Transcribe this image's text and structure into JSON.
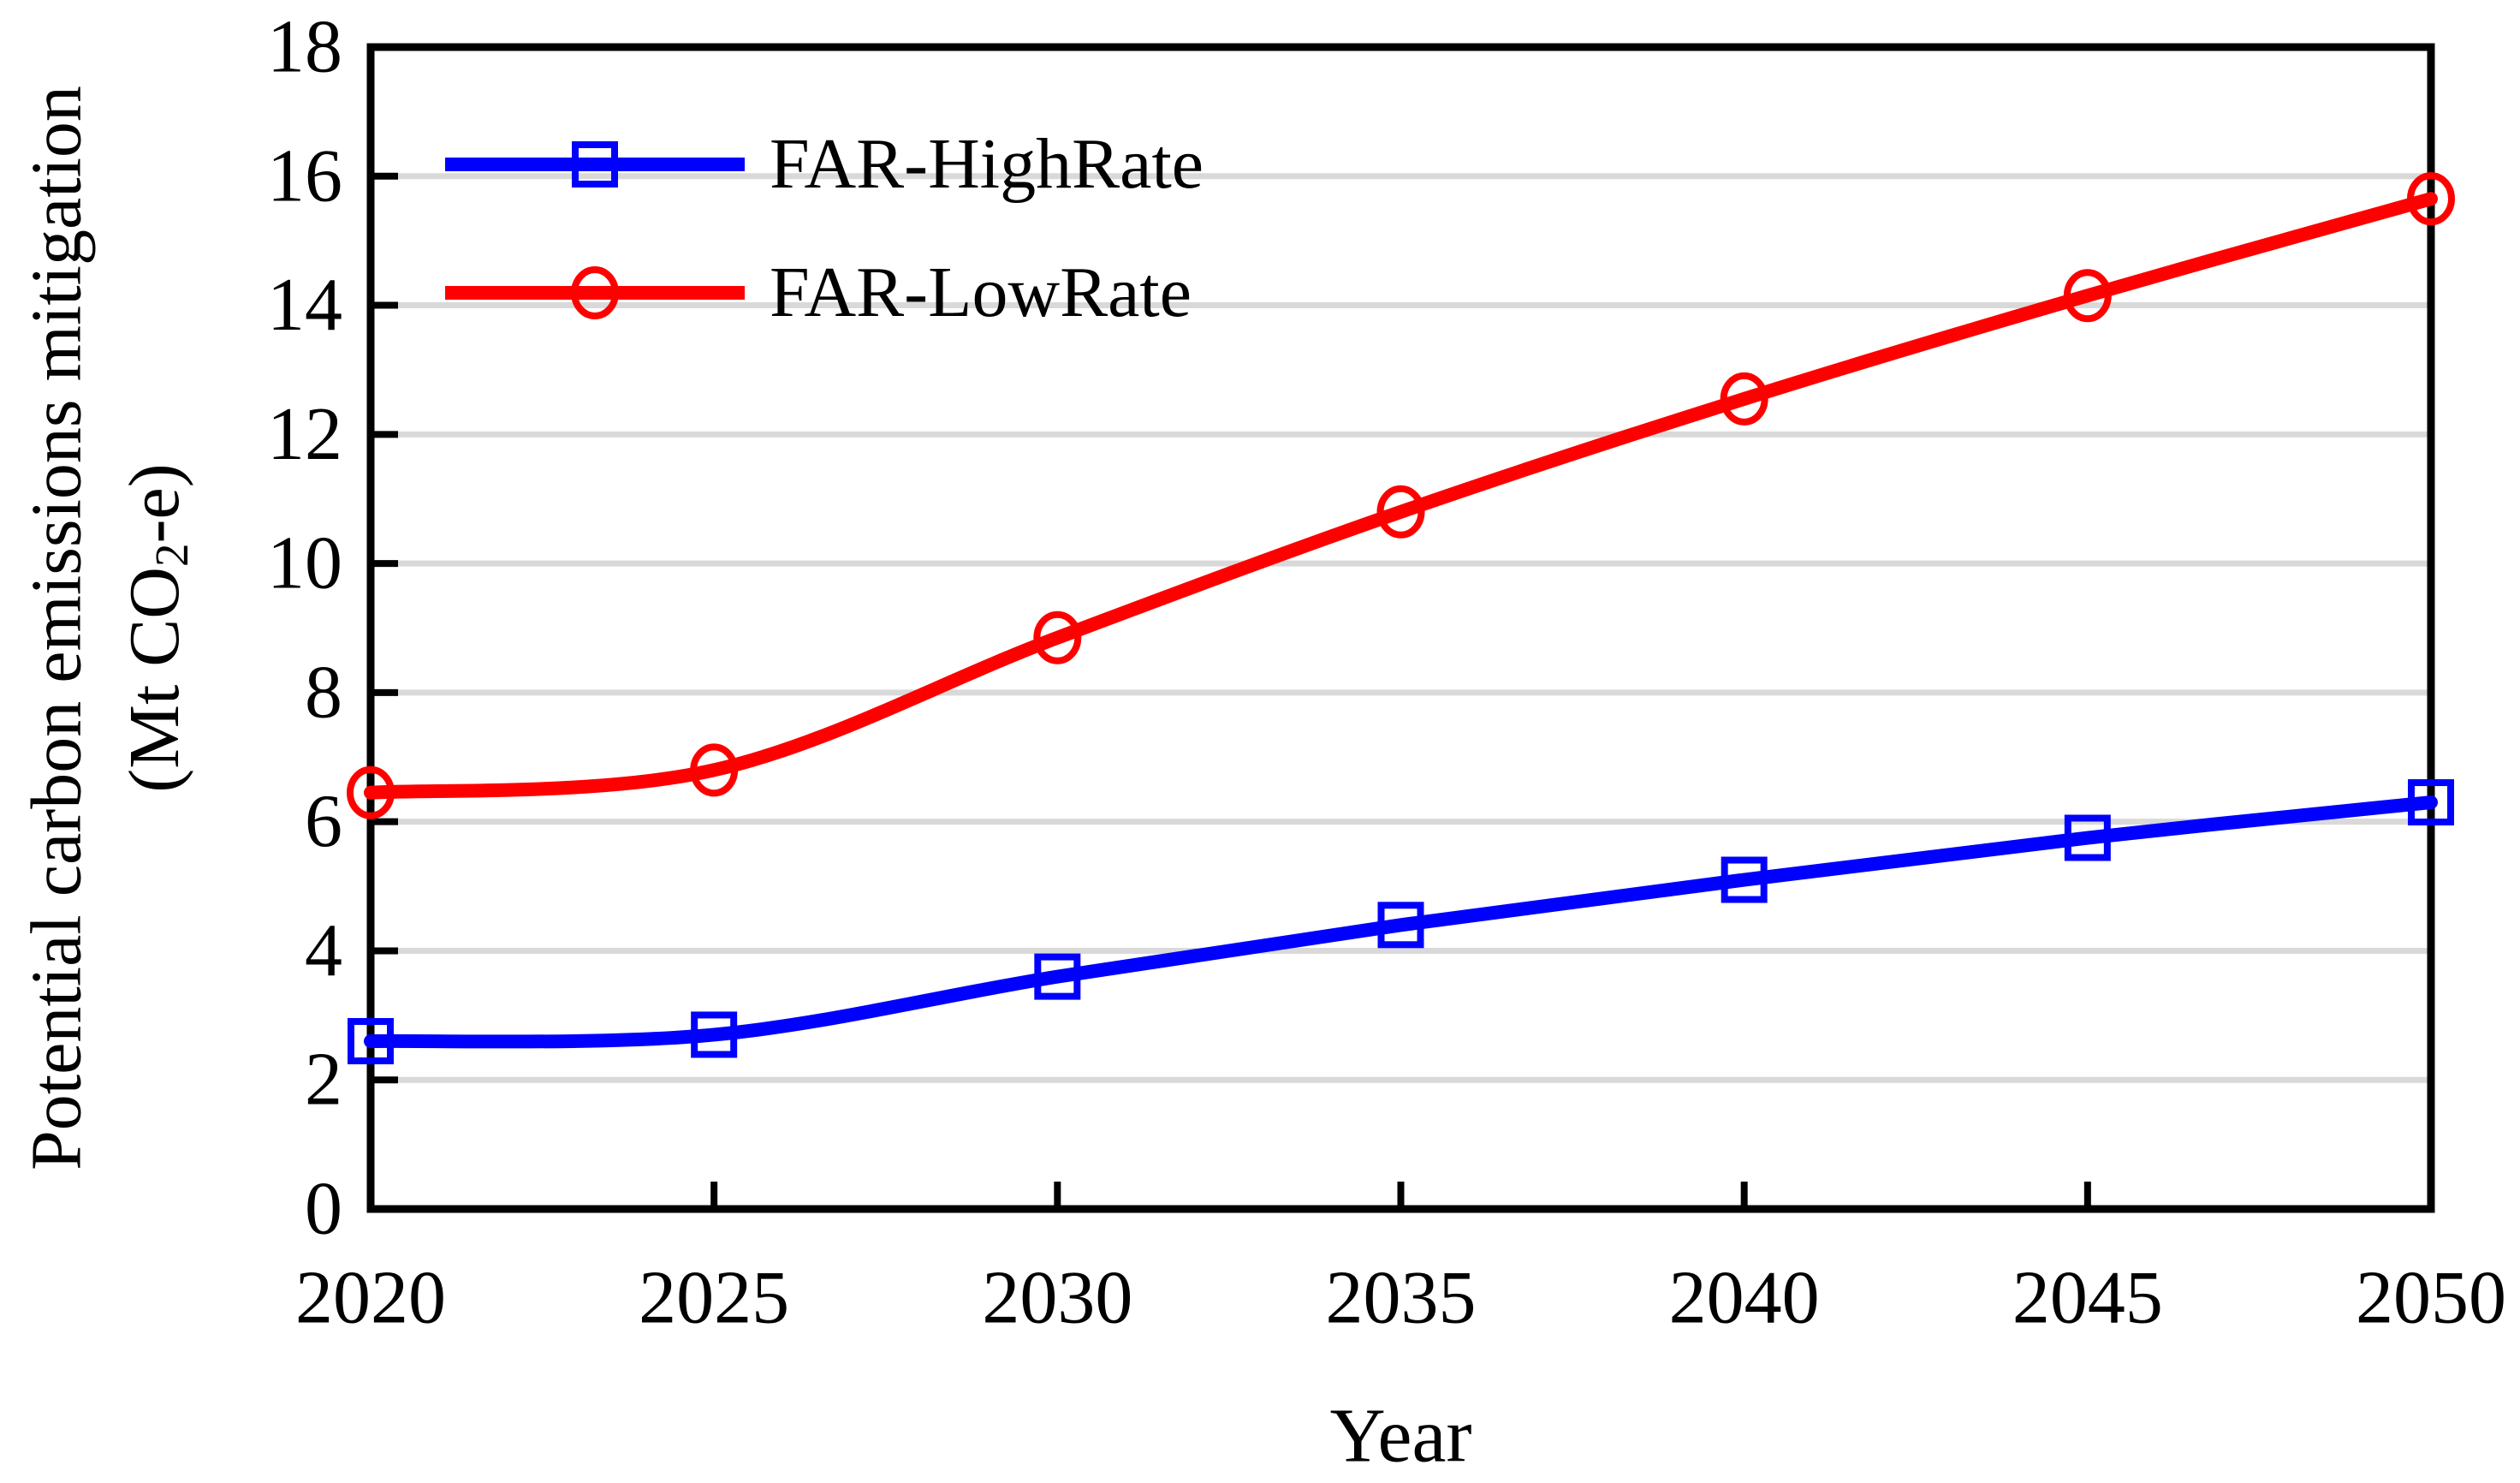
{
  "chart_data": {
    "type": "line",
    "title": "",
    "xlabel": "Year",
    "ylabel_line1": "Potential carbon emissions mitigation",
    "ylabel_unit": {
      "prefix": "(Mt CO",
      "sub": "2",
      "suffix": "-e)"
    },
    "x": [
      2020,
      2025,
      2030,
      2035,
      2040,
      2045,
      2050
    ],
    "series": [
      {
        "name": "FAR-HighRate",
        "color": "#0000FF",
        "marker": "square",
        "values": [
          2.6,
          2.7,
          3.6,
          4.4,
          5.1,
          5.75,
          6.3
        ]
      },
      {
        "name": "FAR-LowRate",
        "color": "#FF0000",
        "marker": "circle",
        "values": [
          6.45,
          6.8,
          8.85,
          10.8,
          12.55,
          14.15,
          15.65
        ]
      }
    ],
    "ylim": [
      0,
      18
    ],
    "ytick_step": 2,
    "xtick_labels": [
      "2020",
      "2025",
      "2030",
      "2035",
      "2040",
      "2045",
      "2050"
    ],
    "ytick_labels": [
      "0",
      "2",
      "4",
      "6",
      "8",
      "10",
      "12",
      "14",
      "16",
      "18"
    ],
    "grid": "horizontal",
    "legend_position": "top-left-inside",
    "axis_color": "#000000",
    "gridline_color": "#D9D9D9",
    "plot_background": "#FFFFFF"
  }
}
